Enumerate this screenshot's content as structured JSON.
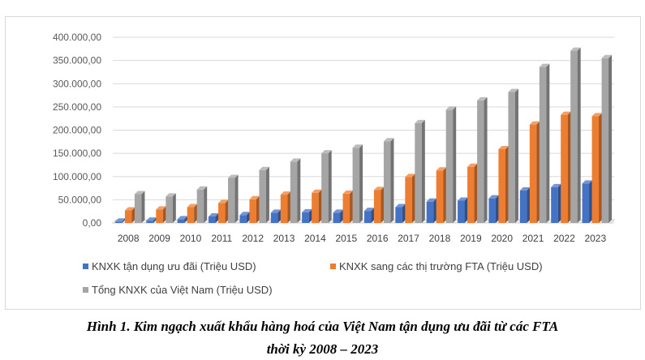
{
  "figure": {
    "caption_line1": "Hình 1. Kim ngạch xuất khẩu hàng hoá của Việt Nam tận dụng ưu đãi từ các FTA",
    "caption_line2": "thời kỳ 2008 – 2023"
  },
  "chart_data": {
    "type": "bar",
    "title": "",
    "xlabel": "",
    "ylabel": "",
    "categories": [
      "2008",
      "2009",
      "2010",
      "2011",
      "2012",
      "2013",
      "2014",
      "2015",
      "2016",
      "2017",
      "2018",
      "2019",
      "2020",
      "2021",
      "2022",
      "2023"
    ],
    "ylim": [
      0,
      400000
    ],
    "yticks": [
      0,
      50000,
      100000,
      150000,
      200000,
      250000,
      300000,
      350000,
      400000
    ],
    "ytick_labels": [
      "0,00",
      "50.000,00",
      "100.000,00",
      "150.000,00",
      "200.000,00",
      "250.000,00",
      "300.000,00",
      "350.000,00",
      "400.000,00"
    ],
    "grid": true,
    "legend_position": "bottom",
    "style": "3d-clustered-bar",
    "series": [
      {
        "name": "KNXK tận dụng ưu đãi (Triệu USD)",
        "color": "#4472c4",
        "values": [
          3000,
          5000,
          8000,
          14000,
          17000,
          22000,
          23000,
          22000,
          26000,
          34000,
          46000,
          48000,
          53000,
          70000,
          77000,
          85000
        ]
      },
      {
        "name": "KNXK sang các thị trường FTA (Triệu USD)",
        "color": "#ed7d31",
        "values": [
          27000,
          29000,
          34000,
          43000,
          51000,
          61000,
          65000,
          63000,
          71000,
          99000,
          113000,
          121000,
          159000,
          212000,
          233000,
          230000
        ]
      },
      {
        "name": "Tổng KNXK của Việt Nam (Triệu USD)",
        "color": "#a5a5a5",
        "values": [
          62000,
          57000,
          72000,
          97000,
          114000,
          132000,
          150000,
          162000,
          176000,
          215000,
          244000,
          264000,
          282000,
          336000,
          371000,
          355000
        ]
      }
    ]
  }
}
